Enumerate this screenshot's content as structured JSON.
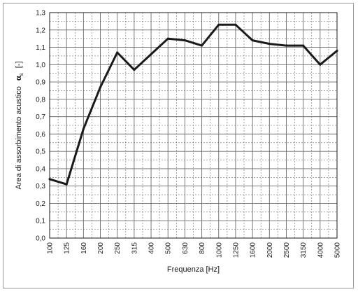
{
  "chart_data": {
    "type": "line",
    "xlabel": "Frequenza [Hz]",
    "ylabel": "Area di assorbimento acustico",
    "ylabel_symbol": "α",
    "ylabel_subscript": "s",
    "ylabel_unit": "[-]",
    "categories": [
      "100",
      "125",
      "160",
      "200",
      "250",
      "315",
      "400",
      "500",
      "630",
      "800",
      "1000",
      "1250",
      "1600",
      "2000",
      "2500",
      "3150",
      "4000",
      "5000"
    ],
    "series": [
      {
        "values": [
          0.34,
          0.31,
          0.63,
          0.87,
          1.07,
          0.97,
          1.06,
          1.15,
          1.14,
          1.11,
          1.23,
          1.23,
          1.14,
          1.12,
          1.11,
          1.11,
          1.0,
          1.08
        ]
      }
    ],
    "yticks": [
      "0,0",
      "0,1",
      "0,2",
      "0,3",
      "0,4",
      "0,5",
      "0,6",
      "0,7",
      "0,8",
      "0,9",
      "1,0",
      "1,1",
      "1,2",
      "1,3"
    ],
    "ylim": [
      0,
      1.3
    ],
    "grid": true,
    "colors": {
      "line": "#1a1a1a",
      "grid": "#6a6a6a",
      "frame": "#9a9a9a"
    }
  }
}
